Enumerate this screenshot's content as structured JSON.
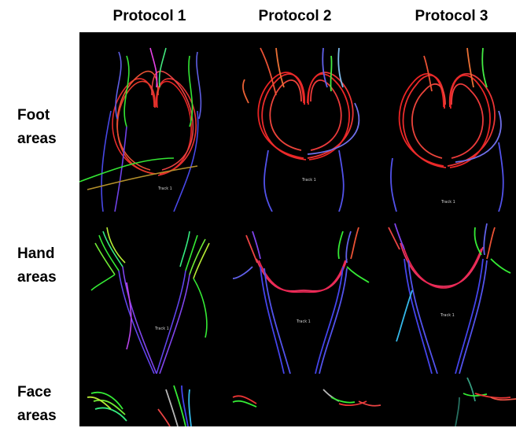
{
  "columns": [
    {
      "label": "Protocol 1"
    },
    {
      "label": "Protocol 2"
    },
    {
      "label": "Protocol 3"
    }
  ],
  "rows": [
    {
      "line1": "Foot",
      "line2": "areas"
    },
    {
      "line1": "Hand",
      "line2": "areas"
    },
    {
      "line1": "Face",
      "line2": "areas"
    }
  ],
  "track_label": "Track 1",
  "colors": {
    "background": "#000000",
    "red": "#ff2a2a",
    "blue": "#4a4aff",
    "green": "#33dd33",
    "magenta": "#e0409a"
  }
}
